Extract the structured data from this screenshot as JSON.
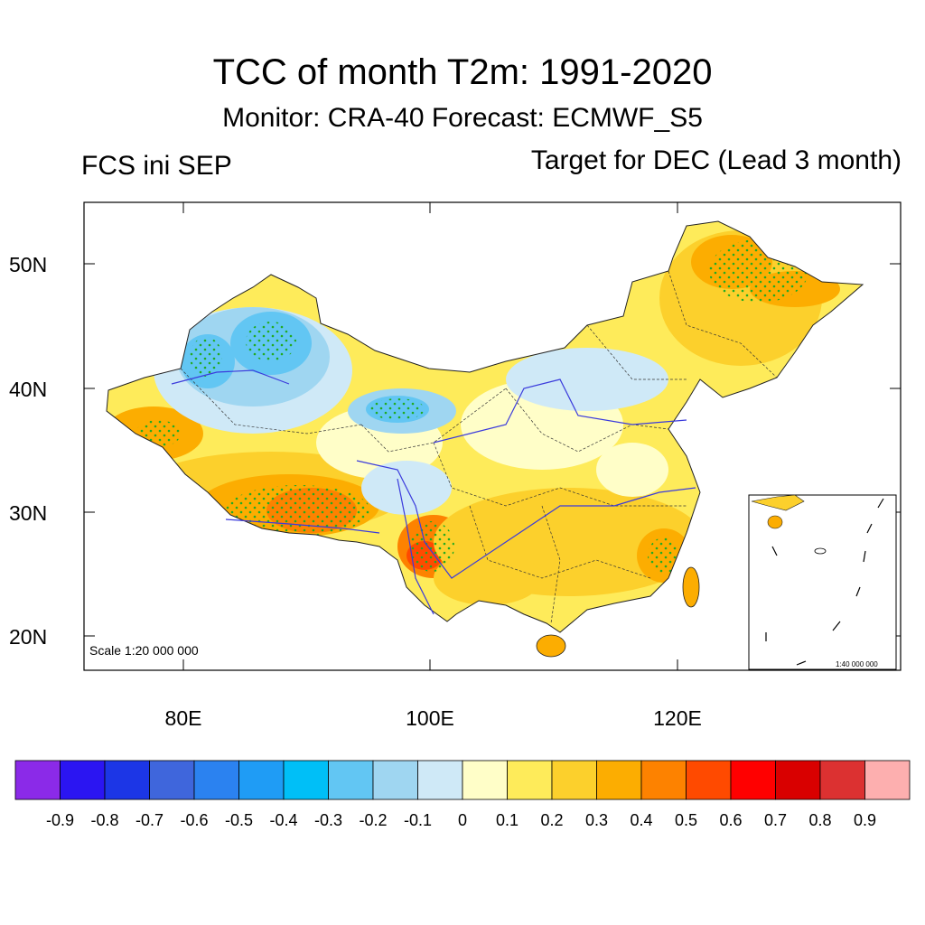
{
  "header": {
    "title": "TCC of month T2m: 1991-2020",
    "subtitle": "Monitor: CRA-40   Forecast: ECMWF_S5",
    "left_label": "FCS ini SEP",
    "right_label": "Target for DEC (Lead 3 month)"
  },
  "map": {
    "lat_labels": [
      "50N",
      "40N",
      "30N",
      "20N"
    ],
    "lon_labels": [
      "80E",
      "100E",
      "120E"
    ],
    "scale_text": "Scale 1:20 000 000",
    "inset_scale_text": "1:40 000 000",
    "colors": {
      "border": "#222222",
      "river": "#3b3bdc",
      "stipple": "#22aa22"
    }
  },
  "colorbar": {
    "colors": [
      "#8b2ae8",
      "#2b15f2",
      "#1c36e6",
      "#3f66dc",
      "#2b82f0",
      "#1f9cf5",
      "#00bff7",
      "#62c6f3",
      "#9fd6f1",
      "#cfe9f7",
      "#fffec8",
      "#feeb5a",
      "#fcd02c",
      "#fcad01",
      "#fd8200",
      "#ff4a00",
      "#ff0000",
      "#d90000",
      "#dc3131",
      "#fdafaf"
    ],
    "labels": [
      "-0.9",
      "-0.8",
      "-0.7",
      "-0.6",
      "-0.5",
      "-0.4",
      "-0.3",
      "-0.2",
      "-0.1",
      "0",
      "0.1",
      "0.2",
      "0.3",
      "0.4",
      "0.5",
      "0.6",
      "0.7",
      "0.8",
      "0.9"
    ]
  }
}
